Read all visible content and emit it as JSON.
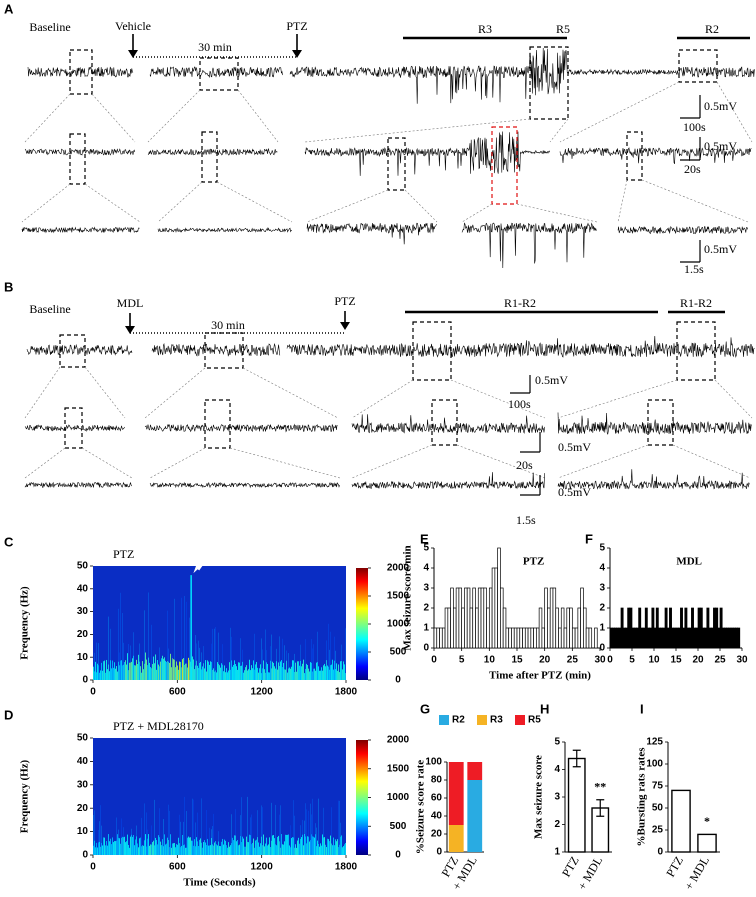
{
  "panel_a": {
    "label": "A",
    "baseline": "Baseline",
    "treatment": "Vehicle",
    "interval": "30 min",
    "injection": "PTZ",
    "stages": [
      "R3",
      "R5",
      "R2"
    ],
    "scale_bars": [
      "0.5mV",
      "100s",
      "0.5mV",
      "20s",
      "0.5mV",
      "1.5s"
    ]
  },
  "panel_b": {
    "label": "B",
    "baseline": "Baseline",
    "treatment": "MDL",
    "interval": "30 min",
    "injection": "PTZ",
    "stages": [
      "R1-R2",
      "R1-R2"
    ],
    "scale_bars": [
      "0.5mV",
      "100s",
      "0.5mV",
      "20s",
      "0.5mV",
      "1.5s"
    ]
  },
  "chart_data": [
    {
      "type": "spectrogram",
      "label": "C",
      "title": "PTZ",
      "ylabel": "Frequency (Hz)",
      "xlim": [
        0,
        1800
      ],
      "xticks": [
        0,
        600,
        1200,
        1800
      ],
      "ylim": [
        0,
        50
      ],
      "yticks": [
        0,
        10,
        20,
        30,
        40,
        50
      ],
      "colorbar_lim": [
        0,
        2000
      ],
      "colorbar_ticks": [
        0,
        500,
        1000,
        1500,
        2000
      ]
    },
    {
      "type": "spectrogram",
      "label": "D",
      "title": "PTZ + MDL28170",
      "ylabel": "Frequency (Hz)",
      "xlabel": "Time (Seconds)",
      "xlim": [
        0,
        1800
      ],
      "xticks": [
        0,
        600,
        1200,
        1800
      ],
      "ylim": [
        0,
        50
      ],
      "yticks": [
        0,
        10,
        20,
        30,
        40,
        50
      ],
      "colorbar_lim": [
        0,
        2000
      ],
      "colorbar_ticks": [
        0,
        500,
        1000,
        1500,
        2000
      ]
    },
    {
      "type": "histogram",
      "label": "E",
      "title": "PTZ",
      "ylabel": "Max seizure score/min",
      "xlabel": "Time after PTZ (min)",
      "color": "#ffffff",
      "bins": [
        0,
        0.5,
        1,
        1.5,
        2,
        2.5,
        3,
        3.5,
        4,
        4.5,
        5,
        5.5,
        6,
        6.5,
        7,
        7.5,
        8,
        8.5,
        9,
        9.5,
        10,
        10.5,
        11,
        11.5,
        12,
        12.5,
        13,
        13.5,
        14,
        14.5,
        15,
        15.5,
        16,
        16.5,
        17,
        17.5,
        18,
        18.5,
        19,
        19.5,
        20,
        20.5,
        21,
        21.5,
        22,
        22.5,
        23,
        23.5,
        24,
        24.5,
        25,
        25.5,
        26,
        26.5,
        27,
        27.5,
        28,
        28.5,
        29,
        29.5,
        30
      ],
      "values": [
        1,
        1,
        1,
        1,
        2,
        2,
        3,
        2,
        3,
        3,
        2,
        3,
        3,
        2,
        3,
        2,
        3,
        3,
        3,
        2,
        3,
        4,
        4,
        5,
        3,
        2,
        1,
        1,
        1,
        1,
        1,
        1,
        1,
        1,
        1,
        1,
        1,
        1,
        2,
        1,
        3,
        2,
        3,
        3,
        2,
        1,
        2,
        1,
        2,
        2,
        1,
        1,
        2,
        3,
        2,
        1,
        1,
        0,
        1,
        0
      ],
      "xlim": [
        0,
        30
      ],
      "xticks": [
        0,
        5,
        10,
        15,
        20,
        25,
        30
      ],
      "ylim": [
        0,
        5
      ],
      "yticks": [
        0,
        1,
        2,
        3,
        4,
        5
      ]
    },
    {
      "type": "histogram",
      "label": "F",
      "title": "MDL",
      "color": "#000000",
      "bins": [
        0,
        0.5,
        1,
        1.5,
        2,
        2.5,
        3,
        3.5,
        4,
        4.5,
        5,
        5.5,
        6,
        6.5,
        7,
        7.5,
        8,
        8.5,
        9,
        9.5,
        10,
        10.5,
        11,
        11.5,
        12,
        12.5,
        13,
        13.5,
        14,
        14.5,
        15,
        15.5,
        16,
        16.5,
        17,
        17.5,
        18,
        18.5,
        19,
        19.5,
        20,
        20.5,
        21,
        21.5,
        22,
        22.5,
        23,
        23.5,
        24,
        24.5,
        25,
        25.5,
        26,
        26.5,
        27,
        27.5,
        28,
        28.5,
        29,
        29.5,
        30
      ],
      "values": [
        1,
        1,
        1,
        1,
        1,
        2,
        1,
        1,
        2,
        2,
        1,
        1,
        1,
        2,
        1,
        1,
        2,
        1,
        1,
        2,
        1,
        2,
        1,
        1,
        1,
        2,
        1,
        2,
        1,
        1,
        1,
        1,
        2,
        1,
        2,
        1,
        1,
        2,
        1,
        1,
        2,
        2,
        1,
        1,
        2,
        1,
        1,
        2,
        2,
        1,
        2,
        1,
        1,
        1,
        1,
        1,
        1,
        1,
        1,
        0
      ],
      "xlim": [
        0,
        30
      ],
      "xticks": [
        0,
        5,
        10,
        15,
        20,
        25,
        30
      ],
      "ylim": [
        0,
        5
      ],
      "yticks": [
        0,
        1,
        2,
        3,
        4,
        5
      ]
    },
    {
      "type": "stacked_bar",
      "label": "G",
      "ylabel": "%Seizure score rate",
      "categories": [
        "PTZ",
        "+ MDL"
      ],
      "legend": "top",
      "series": [
        {
          "name": "R2",
          "color": "#29abe2",
          "values": [
            0,
            80
          ]
        },
        {
          "name": "R3",
          "color": "#f5b324",
          "values": [
            30,
            0
          ]
        },
        {
          "name": "R5",
          "color": "#ee1c25",
          "values": [
            70,
            20
          ]
        }
      ],
      "ylim": [
        0,
        100
      ],
      "yticks": [
        0,
        20,
        40,
        60,
        80,
        100
      ]
    },
    {
      "type": "bar",
      "label": "H",
      "ylabel": "Max seizure score",
      "categories": [
        "PTZ",
        "+ MDL"
      ],
      "values": [
        4.4,
        2.6
      ],
      "errors": [
        0.3,
        0.3
      ],
      "annotation": "**",
      "color": "#ffffff",
      "ylim": [
        1,
        5
      ],
      "yticks": [
        1,
        2,
        3,
        4,
        5
      ]
    },
    {
      "type": "bar",
      "label": "I",
      "ylabel": "%Bursting rats rates",
      "categories": [
        "PTZ",
        "+ MDL"
      ],
      "values": [
        70,
        20
      ],
      "annotation": "*",
      "color": "#ffffff",
      "ylim": [
        0,
        125
      ],
      "yticks": [
        0,
        25,
        50,
        75,
        100,
        125
      ]
    }
  ]
}
